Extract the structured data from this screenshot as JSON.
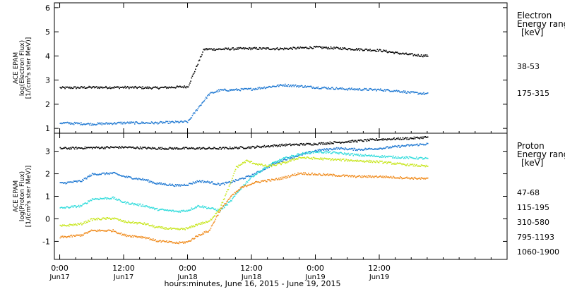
{
  "chart_data": [
    {
      "type": "scatter",
      "panel": "electron",
      "ylabel_lines": [
        "ACE EPAM",
        "log(Electron Flux)",
        "[1/(cm²s ster MeV)]"
      ],
      "legend_title_lines": [
        "Electron",
        "Energy range",
        "[keV]"
      ],
      "ylim": [
        0.8,
        6.2
      ],
      "yticks": [
        1,
        2,
        3,
        4,
        5,
        6
      ],
      "series": [
        {
          "name": "38-53",
          "color": "#000000",
          "x": [
            0,
            6,
            12,
            18,
            24,
            27,
            30,
            33,
            36,
            42,
            48,
            54,
            60,
            63,
            66,
            69
          ],
          "y": [
            2.7,
            2.72,
            2.72,
            2.7,
            2.75,
            4.3,
            4.3,
            4.32,
            4.33,
            4.32,
            4.38,
            4.32,
            4.25,
            4.15,
            4.07,
            4.02
          ]
        },
        {
          "name": "175-315",
          "color": "#1e78d2",
          "x": [
            0,
            6,
            12,
            18,
            24,
            26,
            28,
            30,
            33,
            36,
            42,
            48,
            54,
            60,
            63,
            66,
            69
          ],
          "y": [
            1.25,
            1.2,
            1.25,
            1.25,
            1.3,
            1.9,
            2.45,
            2.6,
            2.62,
            2.65,
            2.82,
            2.72,
            2.65,
            2.62,
            2.58,
            2.5,
            2.45
          ]
        }
      ]
    },
    {
      "type": "scatter",
      "panel": "proton",
      "ylabel_lines": [
        "ACE EPAM",
        "log(Proton Flux)",
        "[1/(cm²s ster MeV)]"
      ],
      "legend_title_lines": [
        "Proton",
        "Energy range",
        "[keV]"
      ],
      "ylim": [
        -1.8,
        3.8
      ],
      "yticks": [
        -1,
        0,
        1,
        2,
        3
      ],
      "xlim": [
        -1,
        84
      ],
      "xticks": [
        {
          "x": 0,
          "label": "0:00",
          "sub": "Jun17"
        },
        {
          "x": 12,
          "label": "12:00",
          "sub": "Jun17"
        },
        {
          "x": 24,
          "label": "0:00",
          "sub": "Jun18"
        },
        {
          "x": 36,
          "label": "12:00",
          "sub": "Jun18"
        },
        {
          "x": 48,
          "label": "0:00",
          "sub": "Jun19"
        },
        {
          "x": 60,
          "label": "12:00",
          "sub": "Jun19"
        }
      ],
      "xlabel": "hours:minutes, June 16, 2015 - June 19, 2015",
      "series": [
        {
          "name": "47-68",
          "color": "#000000",
          "x": [
            0,
            6,
            12,
            18,
            24,
            30,
            36,
            42,
            48,
            54,
            60,
            66,
            69
          ],
          "y": [
            3.15,
            3.18,
            3.2,
            3.15,
            3.15,
            3.15,
            3.2,
            3.3,
            3.35,
            3.45,
            3.55,
            3.6,
            3.65
          ]
        },
        {
          "name": "115-195",
          "color": "#1e78d2",
          "x": [
            0,
            4,
            6,
            10,
            12,
            16,
            18,
            22,
            24,
            26,
            28,
            30,
            32,
            34,
            36,
            38,
            40,
            42,
            45,
            48,
            52,
            56,
            60,
            64,
            69
          ],
          "y": [
            1.6,
            1.7,
            2.0,
            2.05,
            1.9,
            1.75,
            1.6,
            1.5,
            1.55,
            1.7,
            1.65,
            1.55,
            1.65,
            1.8,
            1.95,
            2.2,
            2.45,
            2.65,
            2.85,
            3.05,
            3.15,
            3.1,
            3.15,
            3.25,
            3.35
          ]
        },
        {
          "name": "310-580",
          "color": "#32dcdc",
          "x": [
            0,
            4,
            6,
            10,
            12,
            16,
            18,
            22,
            24,
            26,
            28,
            30,
            32,
            34,
            36,
            38,
            40,
            42,
            45,
            48,
            52,
            56,
            60,
            64,
            69
          ],
          "y": [
            0.5,
            0.6,
            0.9,
            0.95,
            0.75,
            0.6,
            0.45,
            0.35,
            0.4,
            0.6,
            0.5,
            0.4,
            0.8,
            1.4,
            1.9,
            2.2,
            2.5,
            2.7,
            2.9,
            3.0,
            2.95,
            2.85,
            2.8,
            2.75,
            2.7
          ]
        },
        {
          "name": "795-1193",
          "color": "#c8e61e",
          "x": [
            0,
            4,
            6,
            10,
            12,
            16,
            18,
            22,
            24,
            26,
            28,
            30,
            32,
            33,
            35,
            37,
            39,
            42,
            45,
            48,
            52,
            56,
            60,
            64,
            69
          ],
          "y": [
            -0.3,
            -0.2,
            0.0,
            0.05,
            -0.1,
            -0.2,
            -0.35,
            -0.45,
            -0.4,
            -0.2,
            -0.1,
            0.5,
            1.6,
            2.3,
            2.6,
            2.45,
            2.35,
            2.5,
            2.75,
            2.7,
            2.65,
            2.6,
            2.55,
            2.45,
            2.35
          ]
        },
        {
          "name": "1060-1900",
          "color": "#f08c1e",
          "x": [
            0,
            4,
            6,
            10,
            12,
            16,
            18,
            22,
            24,
            26,
            28,
            30,
            32,
            34,
            36,
            38,
            40,
            42,
            45,
            48,
            52,
            56,
            60,
            64,
            69
          ],
          "y": [
            -0.8,
            -0.7,
            -0.5,
            -0.5,
            -0.7,
            -0.8,
            -0.95,
            -1.05,
            -1.0,
            -0.7,
            -0.5,
            0.4,
            1.0,
            1.4,
            1.6,
            1.7,
            1.75,
            1.85,
            2.05,
            2.0,
            1.95,
            1.9,
            1.9,
            1.85,
            1.8
          ]
        }
      ]
    }
  ]
}
